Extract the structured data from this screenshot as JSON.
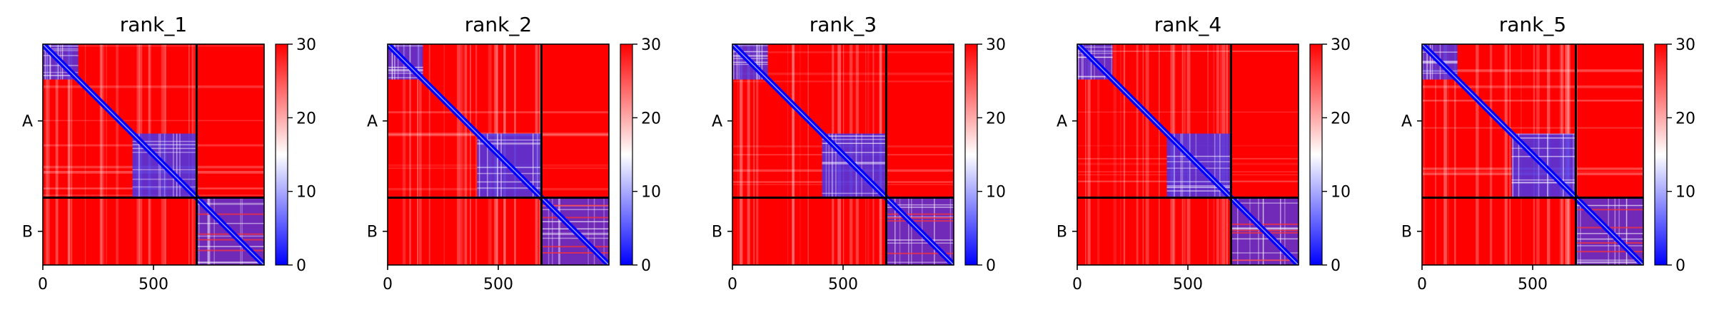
{
  "chart_data": [
    {
      "type": "heatmap",
      "title": "rank_1",
      "x_ticks": [
        0,
        500
      ],
      "x_range": [
        0,
        1000
      ],
      "y_groups": [
        {
          "label": "A",
          "start": 0,
          "end": 695
        },
        {
          "label": "B",
          "start": 695,
          "end": 1000
        }
      ],
      "colorbar": {
        "min": 0,
        "max": 30,
        "ticks": [
          0,
          10,
          20,
          30
        ],
        "colors": [
          "#0000ff",
          "#ffffff",
          "#ff0000"
        ]
      }
    },
    {
      "type": "heatmap",
      "title": "rank_2",
      "x_ticks": [
        0,
        500
      ],
      "x_range": [
        0,
        1000
      ],
      "y_groups": [
        {
          "label": "A",
          "start": 0,
          "end": 695
        },
        {
          "label": "B",
          "start": 695,
          "end": 1000
        }
      ],
      "colorbar": {
        "min": 0,
        "max": 30,
        "ticks": [
          0,
          10,
          20,
          30
        ],
        "colors": [
          "#0000ff",
          "#ffffff",
          "#ff0000"
        ]
      }
    },
    {
      "type": "heatmap",
      "title": "rank_3",
      "x_ticks": [
        0,
        500
      ],
      "x_range": [
        0,
        1000
      ],
      "y_groups": [
        {
          "label": "A",
          "start": 0,
          "end": 695
        },
        {
          "label": "B",
          "start": 695,
          "end": 1000
        }
      ],
      "colorbar": {
        "min": 0,
        "max": 30,
        "ticks": [
          0,
          10,
          20,
          30
        ],
        "colors": [
          "#0000ff",
          "#ffffff",
          "#ff0000"
        ]
      }
    },
    {
      "type": "heatmap",
      "title": "rank_4",
      "x_ticks": [
        0,
        500
      ],
      "x_range": [
        0,
        1000
      ],
      "y_groups": [
        {
          "label": "A",
          "start": 0,
          "end": 695
        },
        {
          "label": "B",
          "start": 695,
          "end": 1000
        }
      ],
      "colorbar": {
        "min": 0,
        "max": 30,
        "ticks": [
          0,
          10,
          20,
          30
        ],
        "colors": [
          "#0000ff",
          "#ffffff",
          "#ff0000"
        ]
      }
    },
    {
      "type": "heatmap",
      "title": "rank_5",
      "x_ticks": [
        0,
        500
      ],
      "x_range": [
        0,
        1000
      ],
      "y_groups": [
        {
          "label": "A",
          "start": 0,
          "end": 695
        },
        {
          "label": "B",
          "start": 695,
          "end": 1000
        }
      ],
      "colorbar": {
        "min": 0,
        "max": 30,
        "ticks": [
          0,
          10,
          20,
          30
        ],
        "colors": [
          "#0000ff",
          "#ffffff",
          "#ff0000"
        ]
      }
    }
  ]
}
